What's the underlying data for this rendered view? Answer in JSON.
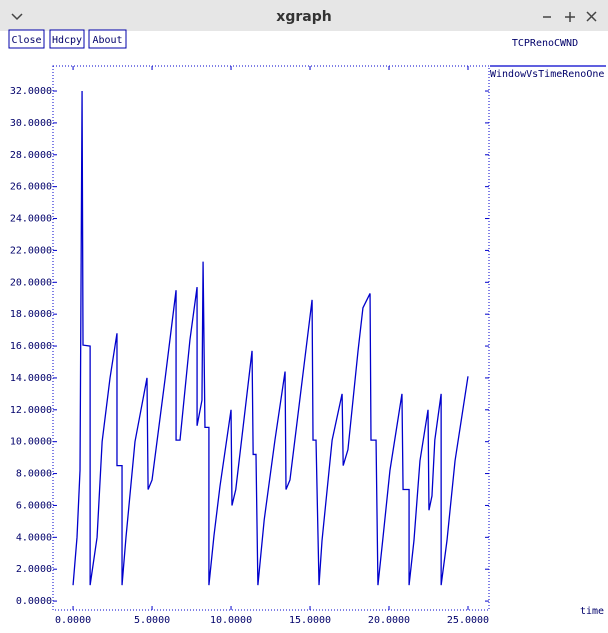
{
  "window": {
    "title": "xgraph",
    "buttons": [
      "Close",
      "Hdcpy",
      "About"
    ]
  },
  "chart_data": {
    "type": "line",
    "title": "TCPRenoCWND",
    "x_label": "time",
    "x": [
      0,
      0.25,
      0.44,
      0.57,
      0.63,
      1.08,
      1.08,
      1.52,
      1.84,
      2.34,
      2.78,
      2.78,
      3.1,
      3.1,
      3.35,
      3.92,
      4.68,
      4.75,
      5,
      5.82,
      6.52,
      6.52,
      6.77,
      7.4,
      7.85,
      7.85,
      8.16,
      8.23,
      8.35,
      8.6,
      8.6,
      8.92,
      9.3,
      10,
      10.06,
      10.3,
      11.33,
      11.4,
      11.58,
      11.7,
      12.1,
      12.78,
      13.42,
      13.48,
      13.73,
      15.13,
      15.19,
      15.38,
      15.57,
      15.76,
      16.4,
      17.03,
      17.1,
      17.4,
      18.04,
      18.35,
      18.8,
      18.86,
      19.18,
      19.3,
      19.6,
      20.06,
      20.82,
      20.89,
      21.27,
      21.27,
      21.58,
      21.96,
      22.47,
      22.53,
      22.72,
      22.9,
      23.3,
      23.3,
      23.3,
      23.67,
      24.18,
      25
    ],
    "series": [
      {
        "name": "WindowVsTimeRenoOne",
        "color": "#0000cc",
        "values": [
          1,
          4,
          8.2,
          32,
          16.06,
          16,
          1,
          4,
          10,
          14,
          16.8,
          8.5,
          8.5,
          1,
          4,
          10,
          14,
          7,
          7.6,
          13.9,
          19.5,
          10.1,
          10.1,
          16.4,
          19.7,
          11,
          12.6,
          21.3,
          10.9,
          10.9,
          1,
          4.1,
          7.2,
          12,
          6,
          7,
          15.7,
          9.2,
          9.2,
          1,
          5.1,
          10.1,
          14.4,
          7,
          7.6,
          18.9,
          10.1,
          10.1,
          1,
          3.8,
          10.1,
          13,
          8.5,
          9.5,
          15.7,
          18.4,
          19.3,
          10.1,
          10.1,
          1,
          3.8,
          8.2,
          13,
          7,
          7,
          1,
          3.8,
          8.8,
          12,
          5.7,
          6.6,
          10.1,
          13,
          6.6,
          1,
          3.8,
          8.8,
          14.1
        ]
      }
    ],
    "xlim": [
      -1.27,
      26.33
    ],
    "ylim": [
      -0.56,
      33.57
    ],
    "xticks": [
      {
        "value": 0,
        "label": "0.0000"
      },
      {
        "value": 5,
        "label": "5.0000"
      },
      {
        "value": 10,
        "label": "10.0000"
      },
      {
        "value": 15,
        "label": "15.0000"
      },
      {
        "value": 20,
        "label": "20.0000"
      },
      {
        "value": 25,
        "label": "25.0000"
      }
    ],
    "yticks": [
      {
        "value": 0,
        "label": "0.0000"
      },
      {
        "value": 2,
        "label": "2.0000"
      },
      {
        "value": 4,
        "label": "4.0000"
      },
      {
        "value": 6,
        "label": "6.0000"
      },
      {
        "value": 8,
        "label": "8.0000"
      },
      {
        "value": 10,
        "label": "10.0000"
      },
      {
        "value": 12,
        "label": "12.0000"
      },
      {
        "value": 14,
        "label": "14.0000"
      },
      {
        "value": 16,
        "label": "16.0000"
      },
      {
        "value": 18,
        "label": "18.0000"
      },
      {
        "value": 20,
        "label": "20.0000"
      },
      {
        "value": 22,
        "label": "22.0000"
      },
      {
        "value": 24,
        "label": "24.0000"
      },
      {
        "value": 26,
        "label": "26.0000"
      },
      {
        "value": 28,
        "label": "28.0000"
      },
      {
        "value": 30,
        "label": "30.0000"
      },
      {
        "value": 32,
        "label": "32.0000"
      }
    ],
    "grid": false
  }
}
